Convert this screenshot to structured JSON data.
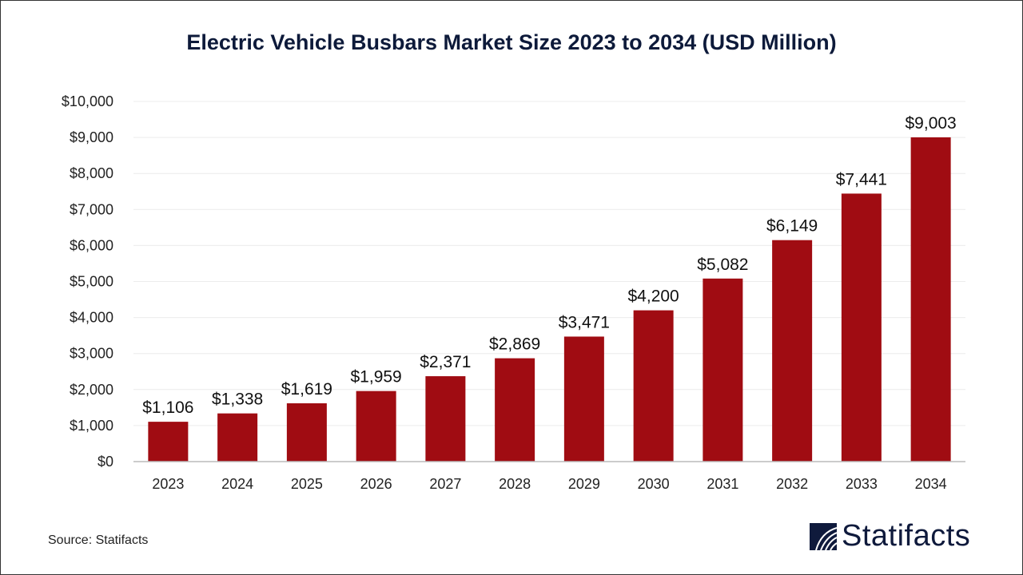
{
  "chart_data": {
    "type": "bar",
    "title": "Electric Vehicle Busbars Market Size 2023 to 2034 (USD Million)",
    "categories": [
      "2023",
      "2024",
      "2025",
      "2026",
      "2027",
      "2028",
      "2029",
      "2030",
      "2031",
      "2032",
      "2033",
      "2034"
    ],
    "values": [
      1106,
      1338,
      1619,
      1959,
      2371,
      2869,
      3471,
      4200,
      5082,
      6149,
      7441,
      9003
    ],
    "data_labels": [
      "$1,106",
      "$1,338",
      "$1,619",
      "$1,959",
      "$2,371",
      "$2,869",
      "$3,471",
      "$4,200",
      "$5,082",
      "$6,149",
      "$7,441",
      "$9,003"
    ],
    "yticks": [
      0,
      1000,
      2000,
      3000,
      4000,
      5000,
      6000,
      7000,
      8000,
      9000,
      10000
    ],
    "ytick_labels": [
      "$0",
      "$1,000",
      "$2,000",
      "$3,000",
      "$4,000",
      "$5,000",
      "$6,000",
      "$7,000",
      "$8,000",
      "$9,000",
      "$10,000"
    ],
    "ylim": [
      0,
      10000
    ],
    "grid": true,
    "bar_color": "#a00c12",
    "xlabel": "",
    "ylabel": ""
  },
  "source": "Source: Statifacts",
  "logo": {
    "text": "Statifacts",
    "color": "#0f1a3c"
  }
}
